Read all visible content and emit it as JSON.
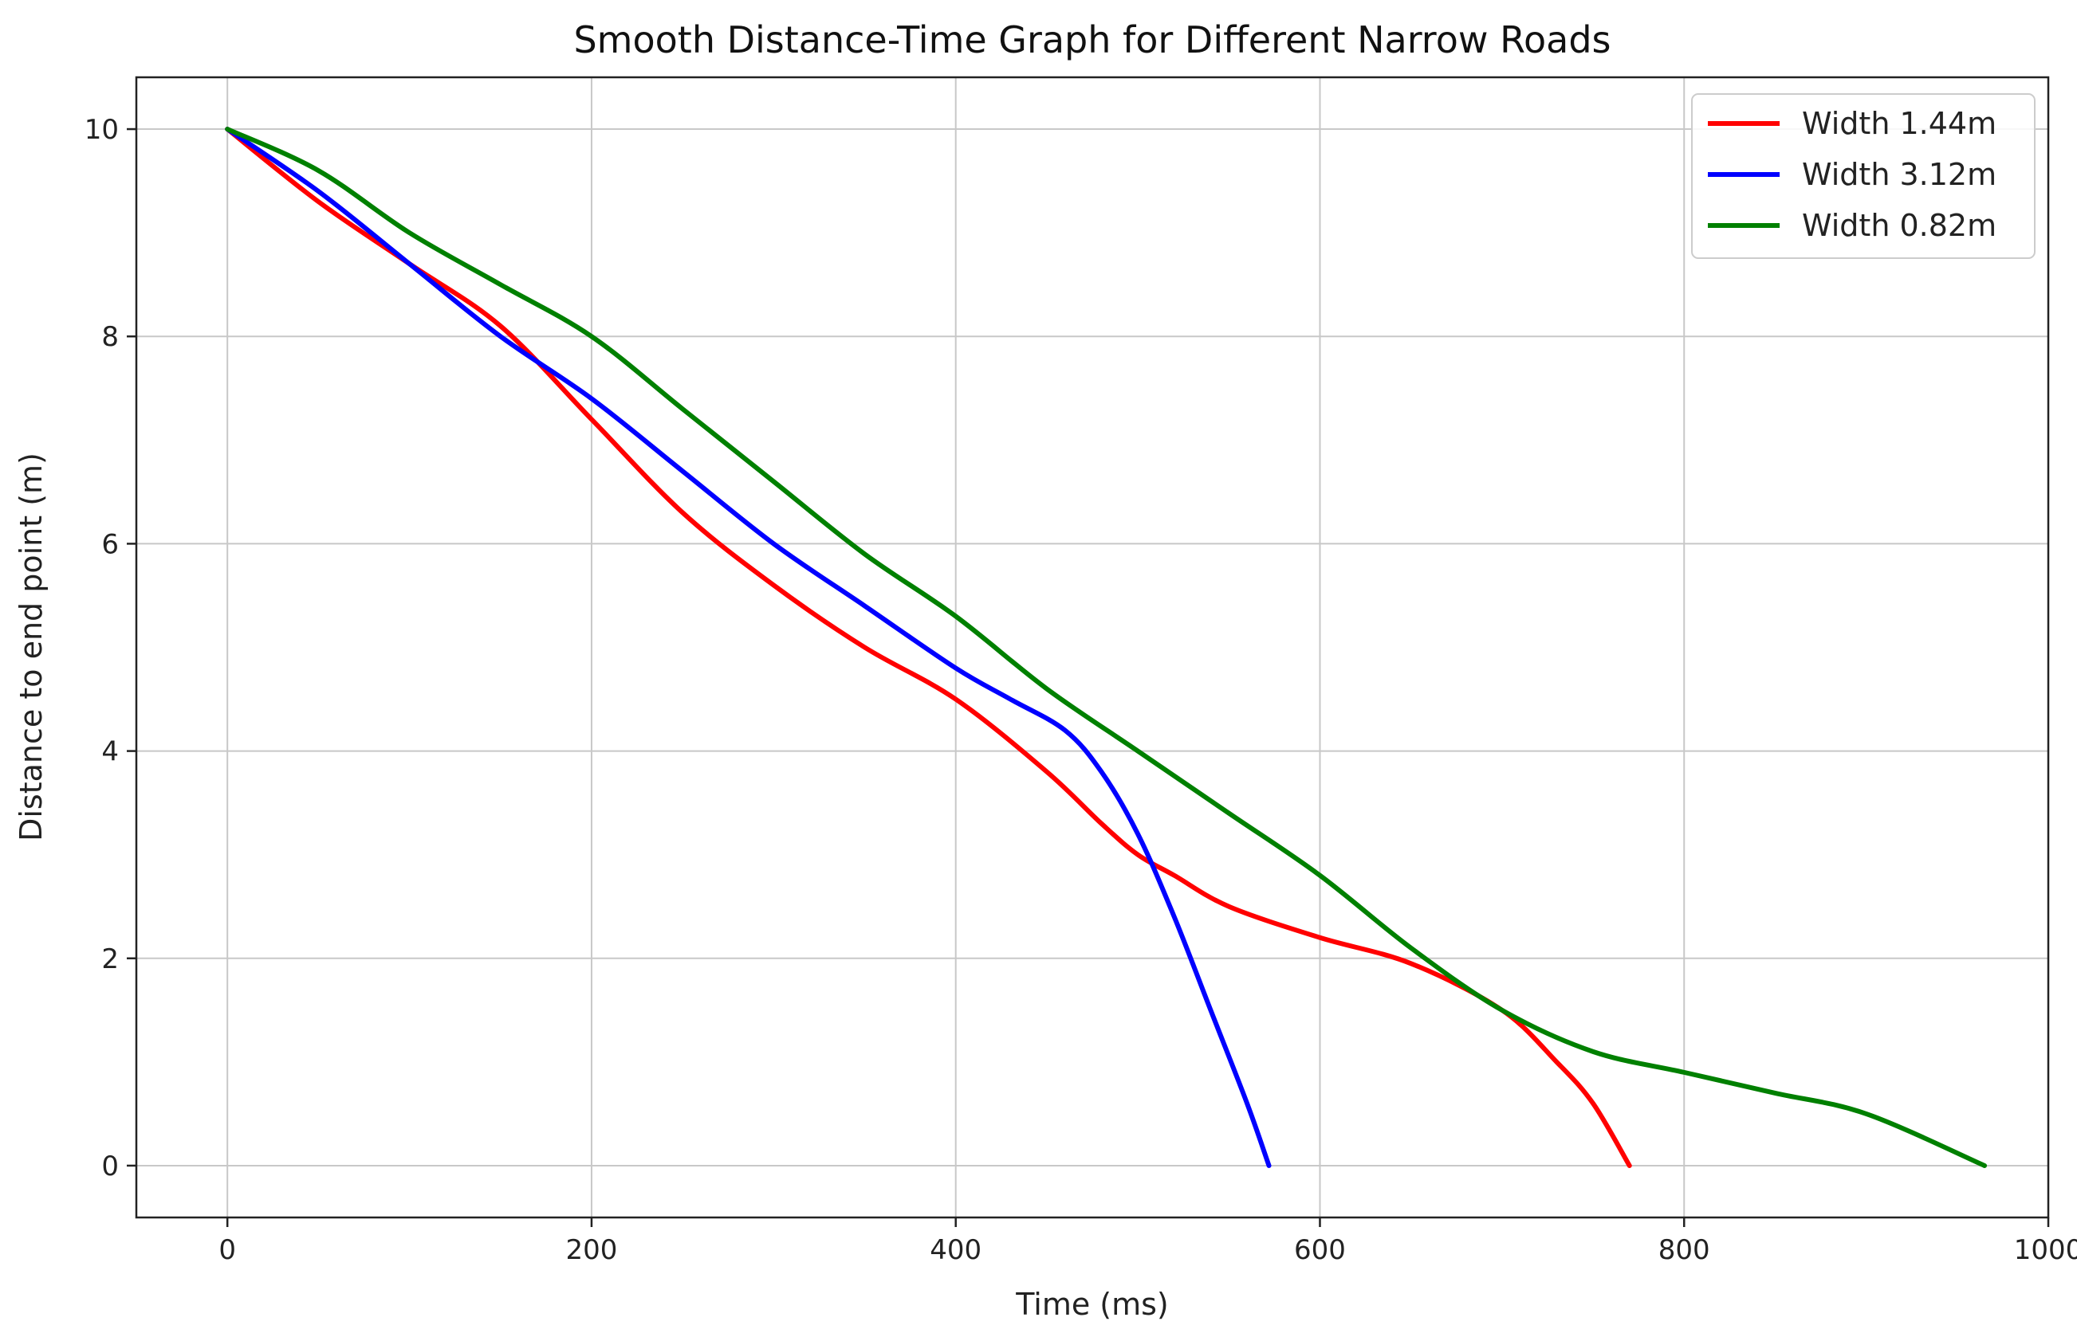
{
  "chart_data": {
    "type": "line",
    "title": "Smooth Distance-Time Graph for Different Narrow Roads",
    "xlabel": "Time (ms)",
    "ylabel": "Distance to end point (m)",
    "xlim": [
      -50,
      1000
    ],
    "ylim": [
      -0.5,
      10.5
    ],
    "xticks": [
      0,
      200,
      400,
      600,
      800,
      1000
    ],
    "yticks": [
      0,
      2,
      4,
      6,
      8,
      10
    ],
    "xtick_labels": [
      "0",
      "200",
      "400",
      "600",
      "800",
      "1000"
    ],
    "ytick_labels": [
      "0",
      "2",
      "4",
      "6",
      "8",
      "10"
    ],
    "grid": true,
    "legend_position": "top-right",
    "series": [
      {
        "name": "Width 1.44m",
        "color": "#ff0000",
        "x": [
          0,
          50,
          100,
          150,
          200,
          250,
          300,
          350,
          400,
          450,
          480,
          500,
          520,
          550,
          600,
          650,
          700,
          730,
          750,
          770
        ],
        "y": [
          10,
          9.3,
          8.7,
          8.1,
          7.2,
          6.3,
          5.6,
          5.0,
          4.5,
          3.8,
          3.3,
          3.0,
          2.8,
          2.5,
          2.2,
          1.95,
          1.5,
          1.0,
          0.6,
          0
        ]
      },
      {
        "name": "Width 3.12m",
        "color": "#0000ff",
        "x": [
          0,
          50,
          100,
          150,
          200,
          250,
          300,
          350,
          400,
          430,
          460,
          480,
          500,
          520,
          540,
          560,
          572
        ],
        "y": [
          10,
          9.4,
          8.7,
          8.0,
          7.4,
          6.7,
          6.0,
          5.4,
          4.8,
          4.5,
          4.2,
          3.8,
          3.2,
          2.4,
          1.5,
          0.6,
          0
        ]
      },
      {
        "name": "Width 0.82m",
        "color": "#008000",
        "x": [
          0,
          50,
          100,
          150,
          200,
          250,
          300,
          350,
          400,
          450,
          500,
          550,
          600,
          650,
          700,
          750,
          800,
          850,
          900,
          965
        ],
        "y": [
          10,
          9.6,
          9.0,
          8.5,
          8.0,
          7.3,
          6.6,
          5.9,
          5.3,
          4.6,
          4.0,
          3.4,
          2.8,
          2.1,
          1.5,
          1.1,
          0.9,
          0.7,
          0.5,
          0
        ]
      }
    ]
  }
}
